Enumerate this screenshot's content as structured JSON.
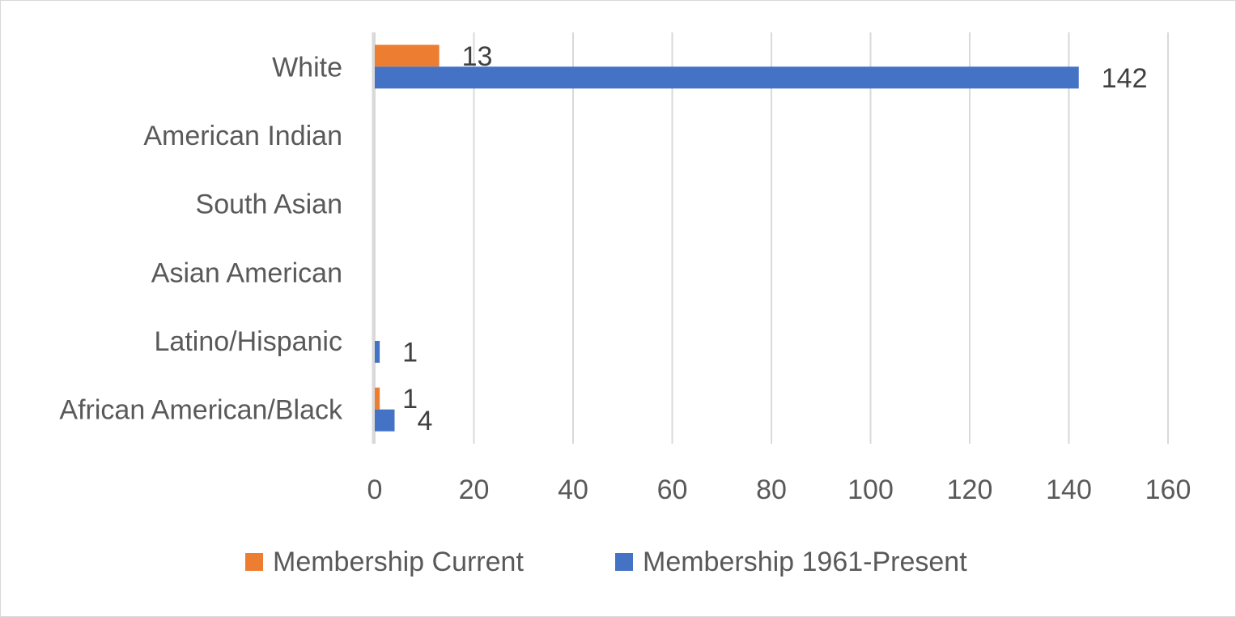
{
  "chart_data": {
    "type": "bar",
    "orientation": "horizontal",
    "categories": [
      "African American/Black",
      "Latino/Hispanic",
      "Asian American",
      "South Asian",
      "American Indian",
      "White"
    ],
    "series": [
      {
        "name": "Membership Current",
        "values": [
          1,
          0,
          0,
          0,
          0,
          13
        ],
        "labels": [
          "1",
          "",
          "",
          "",
          "",
          "13"
        ],
        "color": "#ed7d31"
      },
      {
        "name": "Membership 1961-Present",
        "values": [
          4,
          1,
          0,
          0,
          0,
          142
        ],
        "labels": [
          "4",
          "1",
          "",
          "",
          "",
          "142"
        ],
        "color": "#4472c4"
      }
    ],
    "xlim": [
      0,
      160
    ],
    "xticks": [
      "0",
      "20",
      "40",
      "60",
      "80",
      "100",
      "120",
      "140",
      "160"
    ],
    "grid": true,
    "legend": "bottom"
  }
}
